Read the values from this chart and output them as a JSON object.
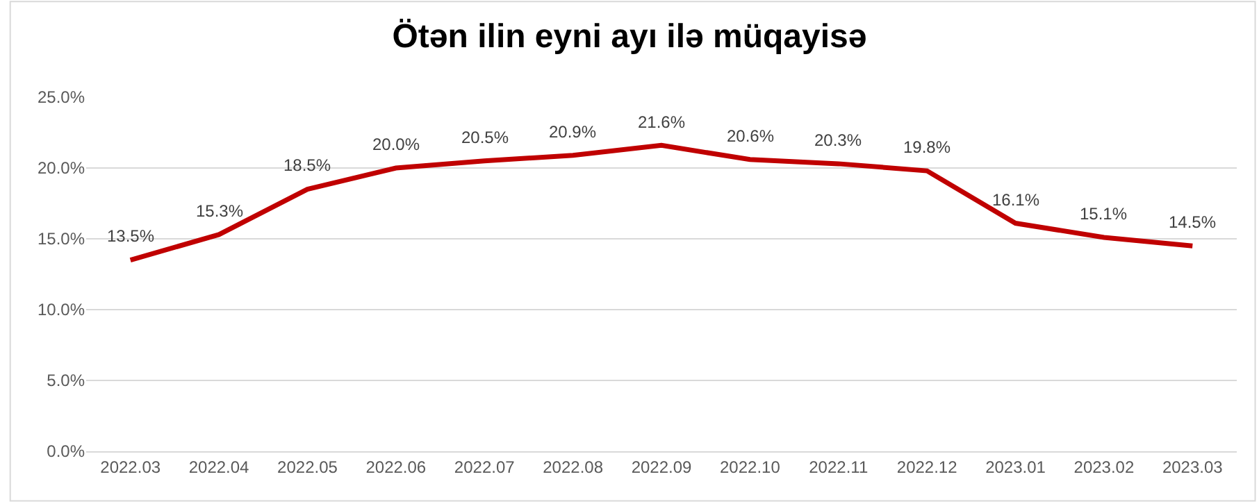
{
  "chart_data": {
    "type": "line",
    "title": "Ötən ilin eyni ayı ilə müqayisə",
    "categories": [
      "2022.03",
      "2022.04",
      "2022.05",
      "2022.06",
      "2022.07",
      "2022.08",
      "2022.09",
      "2022.10",
      "2022.11",
      "2022.12",
      "2023.01",
      "2023.02",
      "2023.03"
    ],
    "series": [
      {
        "color": "#c00000",
        "values": [
          13.5,
          15.3,
          18.5,
          20.0,
          20.5,
          20.9,
          21.6,
          20.6,
          20.3,
          19.8,
          16.1,
          15.1,
          14.5
        ],
        "value_labels": [
          "13.5%",
          "15.3%",
          "18.5%",
          "20.0%",
          "20.5%",
          "20.9%",
          "21.6%",
          "20.6%",
          "20.3%",
          "19.8%",
          "16.1%",
          "15.1%",
          "14.5%"
        ]
      }
    ],
    "ylim": [
      0,
      25
    ],
    "yticks": [
      {
        "value": 0,
        "label": "0.0%"
      },
      {
        "value": 5,
        "label": "5.0%"
      },
      {
        "value": 10,
        "label": "10.0%"
      },
      {
        "value": 15,
        "label": "15.0%"
      },
      {
        "value": 20,
        "label": "20.0%"
      },
      {
        "value": 25,
        "label": "25.0%"
      }
    ],
    "grid": "y",
    "marker": "none",
    "line_style": "solid"
  }
}
